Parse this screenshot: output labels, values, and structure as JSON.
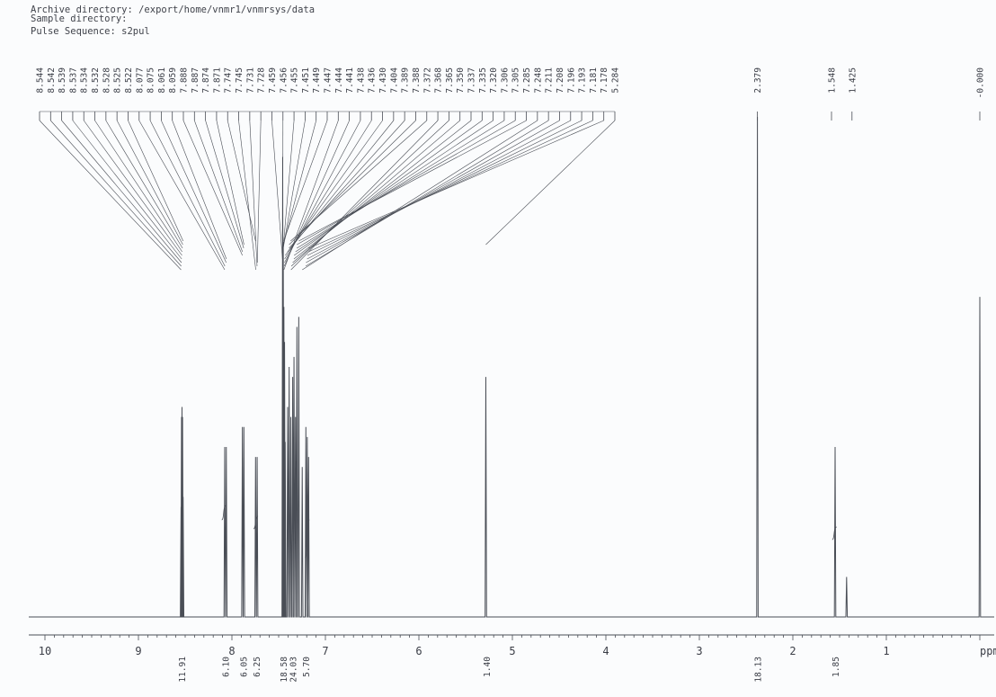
{
  "header": {
    "archive": "Archive directory: /export/home/vnmr1/vnmrsys/data",
    "sample": "Sample directory:",
    "pulse": "Pulse Sequence: s2pul"
  },
  "chart_data": {
    "type": "line",
    "xlabel": "ppm",
    "xlim": [
      10.2,
      -0.2
    ],
    "x_reversed": true,
    "ticks": [
      {
        "v": 10,
        "l": "10"
      },
      {
        "v": 9,
        "l": "9"
      },
      {
        "v": 8,
        "l": "8"
      },
      {
        "v": 7,
        "l": "7"
      },
      {
        "v": 6,
        "l": "6"
      },
      {
        "v": 5,
        "l": "5"
      },
      {
        "v": 4,
        "l": "4"
      },
      {
        "v": 3,
        "l": "3"
      },
      {
        "v": 2,
        "l": "2"
      },
      {
        "v": 1,
        "l": "1"
      },
      {
        "v": 0,
        "l": "ppm"
      }
    ],
    "peak_labels_aromatic": [
      "8.544",
      "8.542",
      "8.539",
      "8.537",
      "8.534",
      "8.532",
      "8.528",
      "8.525",
      "8.522",
      "8.077",
      "8.075",
      "8.061",
      "8.059",
      "7.888",
      "7.887",
      "7.874",
      "7.871",
      "7.747",
      "7.745",
      "7.731",
      "7.728",
      "7.459",
      "7.456",
      "7.455",
      "7.451",
      "7.449",
      "7.447",
      "7.444",
      "7.441",
      "7.438",
      "7.436",
      "7.430",
      "7.404",
      "7.389",
      "7.388",
      "7.372",
      "7.368",
      "7.365",
      "7.350",
      "7.337",
      "7.335",
      "7.320",
      "7.306",
      "7.305",
      "7.285",
      "7.248",
      "7.211",
      "7.208",
      "7.196",
      "7.193",
      "7.181",
      "7.178",
      "5.284"
    ],
    "peak_labels_aliphatic": [
      {
        "label": "2.379",
        "ppm": 2.379
      },
      {
        "label": "1.548",
        "ppm": 1.548
      },
      {
        "label": "1.425",
        "ppm": 1.425
      },
      {
        "label": "-0.000",
        "ppm": 0.0
      }
    ],
    "peaks": [
      {
        "ppm": 8.544,
        "h": 0.22
      },
      {
        "ppm": 8.539,
        "h": 0.4
      },
      {
        "ppm": 8.534,
        "h": 0.42
      },
      {
        "ppm": 8.528,
        "h": 0.4
      },
      {
        "ppm": 8.522,
        "h": 0.24
      },
      {
        "ppm": 8.077,
        "h": 0.34
      },
      {
        "ppm": 8.06,
        "h": 0.34
      },
      {
        "ppm": 7.888,
        "h": 0.38
      },
      {
        "ppm": 7.872,
        "h": 0.38
      },
      {
        "ppm": 7.747,
        "h": 0.32
      },
      {
        "ppm": 7.73,
        "h": 0.32
      },
      {
        "ppm": 7.457,
        "h": 0.92
      },
      {
        "ppm": 7.451,
        "h": 0.75
      },
      {
        "ppm": 7.444,
        "h": 0.62
      },
      {
        "ppm": 7.437,
        "h": 0.55
      },
      {
        "ppm": 7.43,
        "h": 0.35
      },
      {
        "ppm": 7.404,
        "h": 0.42
      },
      {
        "ppm": 7.388,
        "h": 0.5
      },
      {
        "ppm": 7.37,
        "h": 0.4
      },
      {
        "ppm": 7.35,
        "h": 0.48
      },
      {
        "ppm": 7.336,
        "h": 0.52
      },
      {
        "ppm": 7.32,
        "h": 0.4
      },
      {
        "ppm": 7.305,
        "h": 0.58
      },
      {
        "ppm": 7.285,
        "h": 0.6
      },
      {
        "ppm": 7.248,
        "h": 0.3
      },
      {
        "ppm": 7.209,
        "h": 0.38
      },
      {
        "ppm": 7.194,
        "h": 0.36
      },
      {
        "ppm": 7.18,
        "h": 0.32
      },
      {
        "ppm": 5.284,
        "h": 0.48
      },
      {
        "ppm": 2.379,
        "h": 1.0
      },
      {
        "ppm": 1.548,
        "h": 0.34
      },
      {
        "ppm": 1.425,
        "h": 0.08
      },
      {
        "ppm": 0.0,
        "h": 0.64
      }
    ],
    "integrals": [
      {
        "ppm": 8.54,
        "label": "11.91"
      },
      {
        "ppm": 8.07,
        "label": "6.10"
      },
      {
        "ppm": 7.88,
        "label": "6.05"
      },
      {
        "ppm": 7.74,
        "label": "6.25"
      },
      {
        "ppm": 7.45,
        "label": "18.58"
      },
      {
        "ppm": 7.35,
        "label": "24.03"
      },
      {
        "ppm": 7.21,
        "label": "5.70"
      },
      {
        "ppm": 5.28,
        "label": "1.40"
      },
      {
        "ppm": 2.38,
        "label": "18.13"
      },
      {
        "ppm": 1.55,
        "label": "1.85"
      }
    ],
    "colors": {
      "line": "#4a4e56",
      "text": "#3a3d46"
    }
  }
}
